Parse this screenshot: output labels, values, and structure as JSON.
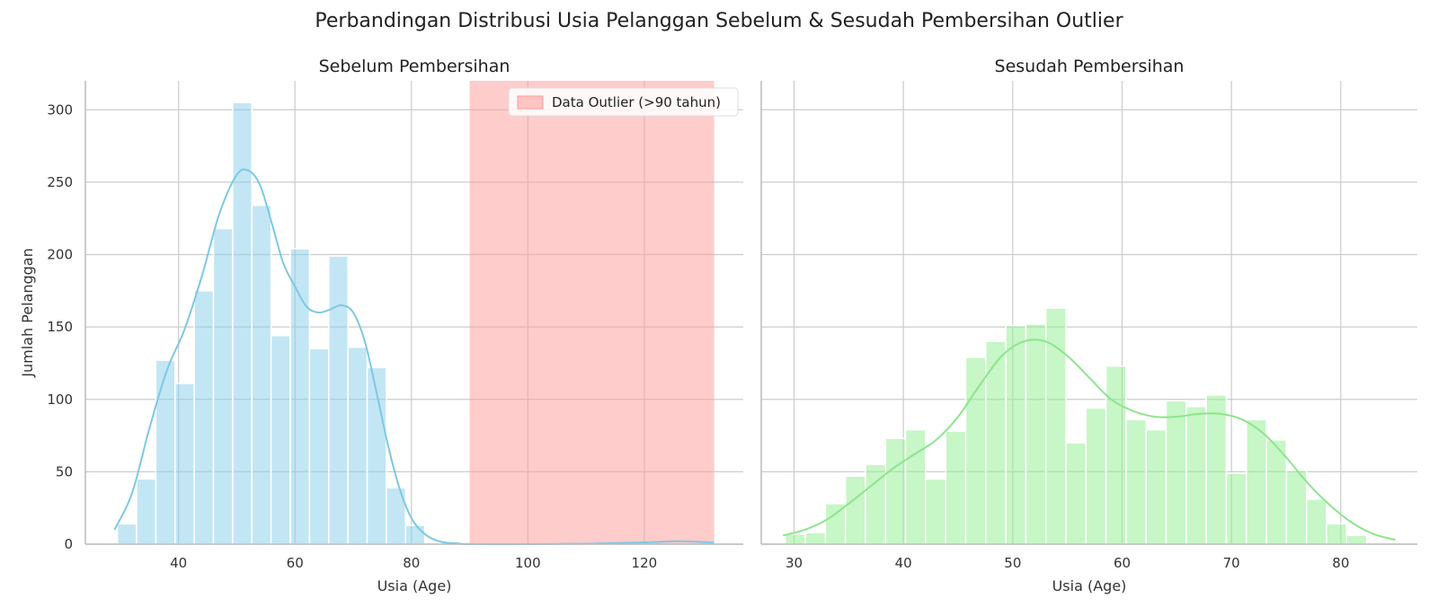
{
  "suptitle": "Perbandingan Distribusi Usia Pelanggan Sebelum & Sesudah Pembersihan Outlier",
  "chart_data": [
    {
      "type": "bar",
      "title": "Sebelum Pembersihan",
      "xlabel": "Usia (Age)",
      "ylabel": "Jumlah Pelanggan",
      "xlim": [
        24,
        137
      ],
      "ylim": [
        0,
        320
      ],
      "xticks": [
        40,
        60,
        80,
        100,
        120
      ],
      "yticks": [
        0,
        50,
        100,
        150,
        200,
        250,
        300
      ],
      "grid": true,
      "bin_edges": [
        29.5,
        32.8,
        36.1,
        39.4,
        42.7,
        46.0,
        49.3,
        52.6,
        55.9,
        59.2,
        62.5,
        65.8,
        69.1,
        72.4,
        75.7,
        79.0,
        82.3
      ],
      "values": [
        14,
        45,
        127,
        111,
        175,
        218,
        305,
        234,
        144,
        204,
        135,
        199,
        136,
        122,
        39,
        13
      ],
      "bar_color": "#87ceeb",
      "kde": {
        "color": "#7ec8e3",
        "x": [
          29,
          32,
          35,
          38,
          41,
          44,
          47,
          50,
          52,
          54,
          56,
          58,
          60,
          62,
          64,
          66,
          68,
          70,
          72,
          74,
          76,
          78,
          80,
          82,
          84,
          86,
          88,
          90,
          100,
          110,
          118,
          122,
          126,
          130,
          132
        ],
        "y": [
          10,
          35,
          80,
          120,
          148,
          185,
          228,
          255,
          258,
          248,
          222,
          194,
          178,
          164,
          160,
          162,
          165,
          160,
          140,
          105,
          68,
          38,
          18,
          8,
          3,
          1,
          0.5,
          0,
          0,
          0.3,
          1,
          1.5,
          2,
          1.5,
          1
        ]
      },
      "outlier_band": {
        "x_start": 90,
        "x_end": 132,
        "color": "#ff9999",
        "label": "Data Outlier (>90 tahun)"
      },
      "legend_position": "top-right"
    },
    {
      "type": "bar",
      "title": "Sesudah Pembersihan",
      "xlabel": "Usia (Age)",
      "ylabel": "",
      "xlim": [
        27,
        87
      ],
      "ylim": [
        0,
        320
      ],
      "xticks": [
        30,
        40,
        50,
        60,
        70,
        80
      ],
      "yticks": [
        0,
        50,
        100,
        150,
        200,
        250,
        300
      ],
      "grid": true,
      "bin_edges": [
        29.2,
        31.03,
        32.87,
        34.7,
        36.53,
        38.37,
        40.2,
        42.03,
        43.87,
        45.7,
        47.53,
        49.37,
        51.2,
        53.03,
        54.87,
        56.7,
        58.53,
        60.37,
        62.2,
        64.03,
        65.87,
        67.7,
        69.53,
        71.37,
        73.2,
        75.03,
        76.87,
        78.7,
        80.53,
        82.37,
        84.2
      ],
      "values": [
        7,
        8,
        28,
        47,
        55,
        73,
        79,
        45,
        78,
        129,
        140,
        151,
        152,
        163,
        70,
        94,
        123,
        86,
        79,
        99,
        95,
        103,
        49,
        86,
        72,
        51,
        31,
        14,
        6,
        0
      ],
      "bar_color": "#90ee90",
      "kde": {
        "color": "#8de58d",
        "x": [
          29,
          31,
          33,
          35,
          37,
          39,
          41,
          43,
          45,
          47,
          49,
          51,
          53,
          55,
          57,
          59,
          61,
          63,
          65,
          67,
          69,
          71,
          73,
          75,
          77,
          79,
          81,
          83,
          85
        ],
        "y": [
          6,
          10,
          17,
          28,
          40,
          52,
          62,
          72,
          88,
          110,
          130,
          140,
          140,
          130,
          115,
          100,
          92,
          88,
          88,
          90,
          90,
          86,
          76,
          60,
          42,
          27,
          15,
          7,
          3
        ]
      }
    }
  ]
}
